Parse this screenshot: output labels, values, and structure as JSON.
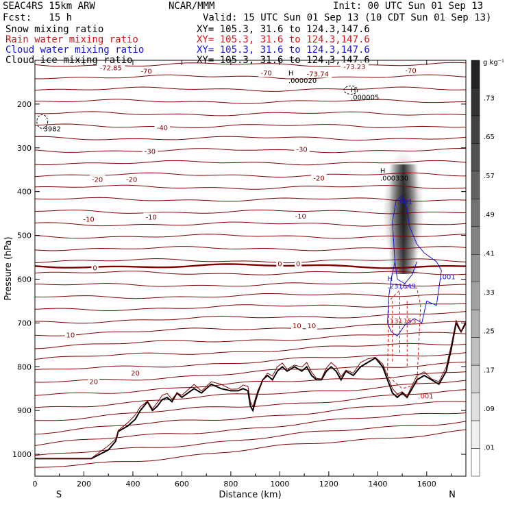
{
  "header": {
    "title": "SEAC4RS 15km ARW",
    "producer": "NCAR/MMM",
    "init": "Init: 00 UTC Sun 01 Sep 13",
    "fcst": "Fcst:   15 h",
    "valid": "Valid: 15 UTC Sun 01 Sep 13 (10 CDT Sun 01 Sep 13)",
    "fields": [
      {
        "name": "Snow mixing ratio",
        "xy": "XY= 105.3, 31.6 to 124.3,147.6",
        "color": "#000000"
      },
      {
        "name": "Rain water mixing ratio",
        "xy": "XY= 105.3, 31.6 to 124.3,147.6",
        "color": "#d11414"
      },
      {
        "name": "Cloud water mixing ratio",
        "xy": "XY= 105.3, 31.6 to 124.3,147.6",
        "color": "#1414d8"
      },
      {
        "name": "Cloud ice mixing ratio",
        "xy": "XY= 105.3, 31.6 to 124.3,147.6",
        "color": "#000000"
      }
    ]
  },
  "chart_data": {
    "type": "heatmap",
    "xlabel": "Distance (km)",
    "ylabel": "Pressure (hPa)",
    "xlim": [
      0,
      1760
    ],
    "ylim": [
      1050,
      100
    ],
    "x_ticks": [
      0,
      200,
      400,
      600,
      800,
      1000,
      1200,
      1400,
      1600
    ],
    "y_ticks": [
      200,
      300,
      400,
      500,
      600,
      700,
      800,
      900,
      1000
    ],
    "x_end_labels": {
      "left": "S",
      "right": "N"
    },
    "colorbar": {
      "units": "g kg⁻¹",
      "ticks": [
        ".01",
        ".09",
        ".17",
        ".25",
        ".33",
        ".41",
        ".49",
        ".57",
        ".65",
        ".73"
      ],
      "levels": 15
    },
    "temperature_contours": {
      "color": "#800000",
      "zero_color": "#800000",
      "labels": [
        {
          "text": "-72.85",
          "x": 310,
          "p": 118
        },
        {
          "text": "-70",
          "x": 455,
          "p": 126
        },
        {
          "text": "-70",
          "x": 945,
          "p": 130
        },
        {
          "text": "-73.74",
          "x": 1155,
          "p": 132
        },
        {
          "text": "-73.23",
          "x": 1305,
          "p": 116
        },
        {
          "text": "-70",
          "x": 1535,
          "p": 124
        },
        {
          "text": "-40",
          "x": 520,
          "p": 255
        },
        {
          "text": "-30",
          "x": 470,
          "p": 309
        },
        {
          "text": "-30",
          "x": 1090,
          "p": 304
        },
        {
          "text": "-20",
          "x": 255,
          "p": 373
        },
        {
          "text": "-20",
          "x": 395,
          "p": 373
        },
        {
          "text": "-20",
          "x": 1160,
          "p": 370
        },
        {
          "text": "-10",
          "x": 220,
          "p": 464
        },
        {
          "text": "-10",
          "x": 475,
          "p": 459
        },
        {
          "text": "-10",
          "x": 1085,
          "p": 457
        },
        {
          "text": "0",
          "x": 245,
          "p": 575
        },
        {
          "text": "0",
          "x": 1000,
          "p": 566
        },
        {
          "text": "0",
          "x": 1075,
          "p": 566
        },
        {
          "text": "10",
          "x": 145,
          "p": 728
        },
        {
          "text": "10",
          "x": 1070,
          "p": 707
        },
        {
          "text": "10",
          "x": 1130,
          "p": 707
        },
        {
          "text": "20",
          "x": 240,
          "p": 835
        },
        {
          "text": "20",
          "x": 410,
          "p": 815
        }
      ]
    },
    "markers": [
      {
        "label": "H",
        "value": ".000020",
        "x": 1035,
        "p": 152,
        "color": "#000000"
      },
      {
        "label": "H",
        "value": ".000005",
        "x": 1290,
        "p": 190,
        "color": "#000000"
      },
      {
        "label": "",
        "value": "3982",
        "x": 35,
        "p": 262,
        "color": "#000000"
      },
      {
        "label": "H",
        "value": ".000330",
        "x": 1410,
        "p": 375,
        "color": "#000000"
      },
      {
        "label": "",
        "value": ".001",
        "x": 1480,
        "p": 428,
        "color": "#1414d8"
      },
      {
        "label": "",
        "value": ".001",
        "x": 1655,
        "p": 600,
        "color": "#1414d8"
      },
      {
        "label": "H",
        "value": ".231649",
        "x": 1440,
        "p": 621,
        "color": "#1414d8"
      },
      {
        "label": "",
        "value": ".131",
        "x": 1440,
        "p": 701,
        "color": "#d11414"
      },
      {
        "label": "",
        "value": ".153",
        "x": 1495,
        "p": 701,
        "color": "#d11414"
      },
      {
        "label": "",
        "value": ".001",
        "x": 1565,
        "p": 872,
        "color": "#d11414"
      }
    ]
  }
}
